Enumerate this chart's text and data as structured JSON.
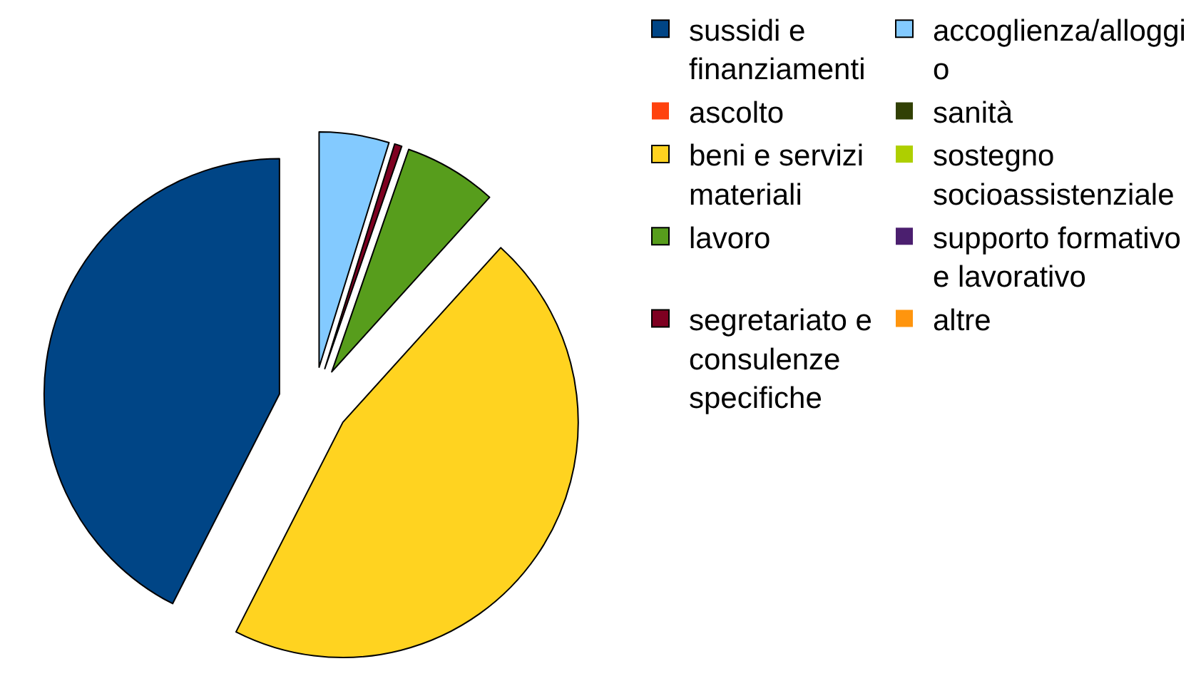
{
  "chart_data": {
    "type": "pie",
    "categories": [
      "sussidi e finanziamenti",
      "ascolto",
      "beni e servizi materiali",
      "lavoro",
      "segretariato e consulenze specifiche",
      "accoglienza/alloggio",
      "sanità",
      "sostegno socioassistenziale",
      "supporto formativo e lavorativo",
      "altre"
    ],
    "values": [
      42.5,
      0,
      45.8,
      6.4,
      0.5,
      4.8,
      0,
      0,
      0,
      0
    ],
    "colors": [
      "#004586",
      "#ff420e",
      "#ffd320",
      "#579d1c",
      "#7e0021",
      "#83caff",
      "#314004",
      "#aecf00",
      "#4b1f6f",
      "#ff950e"
    ],
    "legend": "right"
  }
}
